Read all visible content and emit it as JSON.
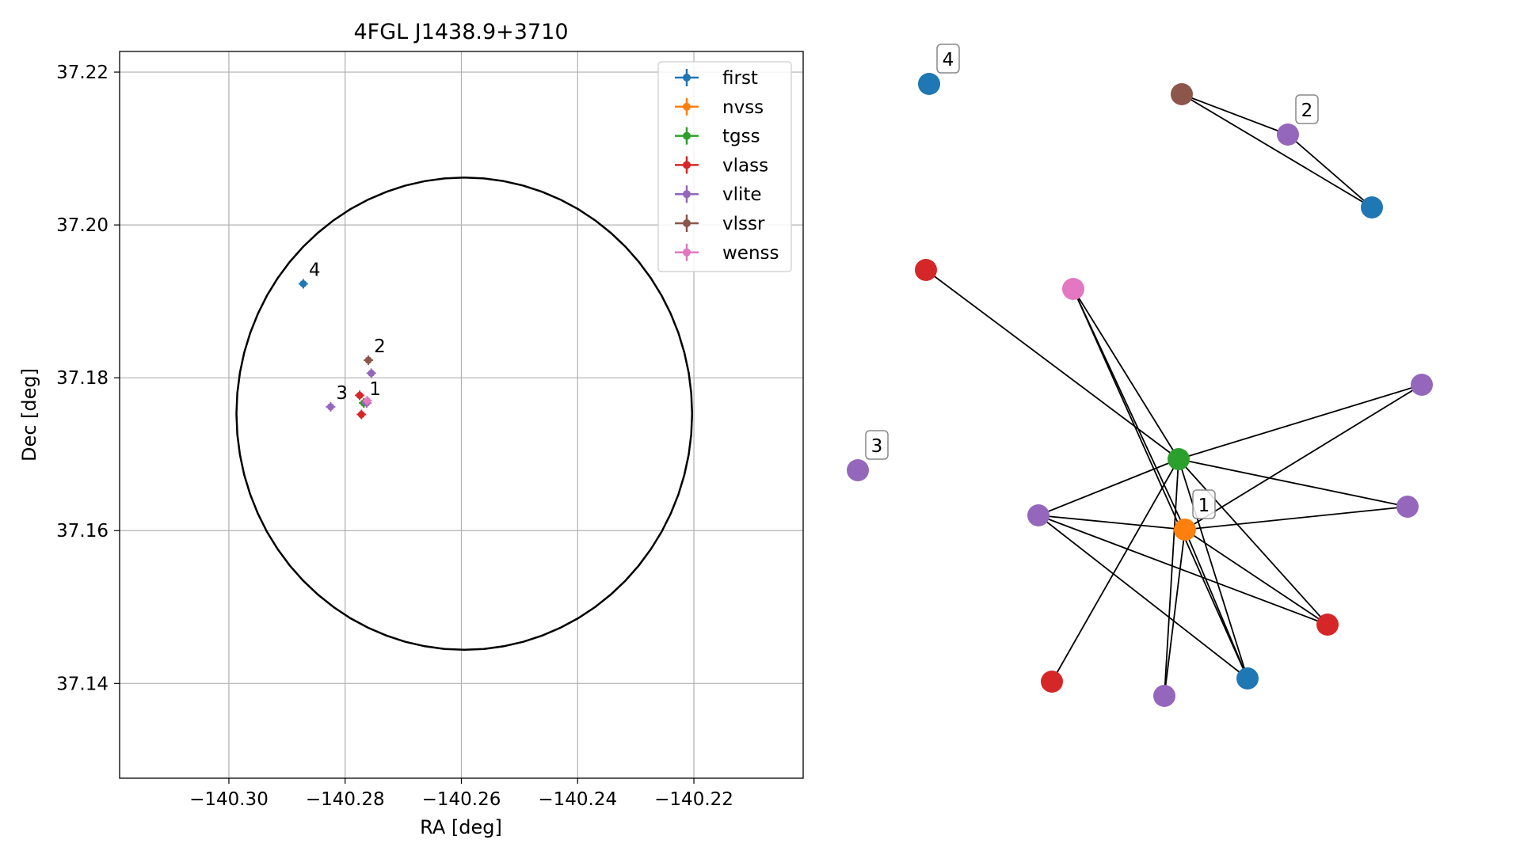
{
  "chart_data": [
    {
      "type": "scatter",
      "title": "4FGL J1438.9+3710",
      "xlabel": "RA [deg]",
      "ylabel": "Dec [deg]",
      "xlim": [
        -140.3188,
        -140.2012
      ],
      "ylim": [
        37.1276,
        37.2227
      ],
      "x_ticks": [
        {
          "value": -140.3,
          "label": "−140.30"
        },
        {
          "value": -140.28,
          "label": "−140.28"
        },
        {
          "value": -140.26,
          "label": "−140.26"
        },
        {
          "value": -140.24,
          "label": "−140.24"
        },
        {
          "value": -140.22,
          "label": "−140.22"
        }
      ],
      "y_ticks": [
        {
          "value": 37.14,
          "label": "37.14"
        },
        {
          "value": 37.16,
          "label": "37.16"
        },
        {
          "value": 37.18,
          "label": "37.18"
        },
        {
          "value": 37.2,
          "label": "37.20"
        },
        {
          "value": 37.22,
          "label": "37.22"
        }
      ],
      "grid": true,
      "legend_position": "top-right",
      "region_circle": {
        "center": [
          -140.2595,
          37.1753
        ],
        "radius_ra": 0.0392,
        "radius_dec": 0.0309
      },
      "series": [
        {
          "name": "first",
          "color": "#1f77b4",
          "points": [
            [
              -140.2872,
              37.1923
            ]
          ]
        },
        {
          "name": "nvss",
          "color": "#ff7f0e",
          "points": [
            [
              -140.2768,
              37.1767
            ]
          ]
        },
        {
          "name": "tgss",
          "color": "#2ca02c",
          "points": [
            [
              -140.2768,
              37.1767
            ]
          ]
        },
        {
          "name": "vlass",
          "color": "#d62728",
          "points": [
            [
              -140.2775,
              37.1777
            ],
            [
              -140.2772,
              37.1752
            ]
          ]
        },
        {
          "name": "vlite",
          "color": "#9467bd",
          "points": [
            [
              -140.2755,
              37.1806
            ],
            [
              -140.2825,
              37.1762
            ],
            [
              -140.2763,
              37.1767
            ]
          ]
        },
        {
          "name": "vlssr",
          "color": "#8c564b",
          "points": [
            [
              -140.276,
              37.1823
            ]
          ]
        },
        {
          "name": "wenss",
          "color": "#e377c2",
          "points": [
            [
              -140.2762,
              37.177
            ]
          ]
        }
      ],
      "annotations": [
        {
          "text": "4",
          "x": -140.2872,
          "y": 37.1923
        },
        {
          "text": "2",
          "x": -140.276,
          "y": 37.1823
        },
        {
          "text": "3",
          "x": -140.2825,
          "y": 37.1762
        },
        {
          "text": "1",
          "x": -140.2768,
          "y": 37.1767
        }
      ]
    },
    {
      "type": "network",
      "colors": {
        "first": "#1f77b4",
        "nvss": "#ff7f0e",
        "tgss": "#2ca02c",
        "vlass": "#d62728",
        "vlite": "#9467bd",
        "vlssr": "#8c564b",
        "wenss": "#e377c2"
      },
      "nodes": [
        {
          "id": "n1",
          "survey": "tgss"
        },
        {
          "id": "n2",
          "survey": "nvss",
          "label": "1"
        },
        {
          "id": "n3",
          "survey": "vlass"
        },
        {
          "id": "n4",
          "survey": "wenss"
        },
        {
          "id": "n5",
          "survey": "vlite"
        },
        {
          "id": "n6",
          "survey": "vlite"
        },
        {
          "id": "n7",
          "survey": "vlite"
        },
        {
          "id": "n8",
          "survey": "vlass"
        },
        {
          "id": "n9",
          "survey": "vlite"
        },
        {
          "id": "n10",
          "survey": "first"
        },
        {
          "id": "n11",
          "survey": "vlass"
        },
        {
          "id": "n12",
          "survey": "vlssr"
        },
        {
          "id": "n13",
          "survey": "vlite",
          "label": "2"
        },
        {
          "id": "n14",
          "survey": "first"
        },
        {
          "id": "n15",
          "survey": "first",
          "label": "4"
        },
        {
          "id": "n16",
          "survey": "vlite",
          "label": "3"
        }
      ],
      "edges": [
        [
          "n1",
          "n3"
        ],
        [
          "n1",
          "n5"
        ],
        [
          "n1",
          "n6"
        ],
        [
          "n1",
          "n7"
        ],
        [
          "n1",
          "n8"
        ],
        [
          "n1",
          "n9"
        ],
        [
          "n1",
          "n10"
        ],
        [
          "n1",
          "n11"
        ],
        [
          "n2",
          "n4"
        ],
        [
          "n2",
          "n5"
        ],
        [
          "n2",
          "n6"
        ],
        [
          "n2",
          "n7"
        ],
        [
          "n2",
          "n8"
        ],
        [
          "n2",
          "n9"
        ],
        [
          "n2",
          "n10"
        ],
        [
          "n4",
          "n1"
        ],
        [
          "n4",
          "n10"
        ],
        [
          "n7",
          "n8"
        ],
        [
          "n7",
          "n10"
        ],
        [
          "n12",
          "n13"
        ],
        [
          "n12",
          "n14"
        ],
        [
          "n13",
          "n14"
        ]
      ]
    }
  ]
}
